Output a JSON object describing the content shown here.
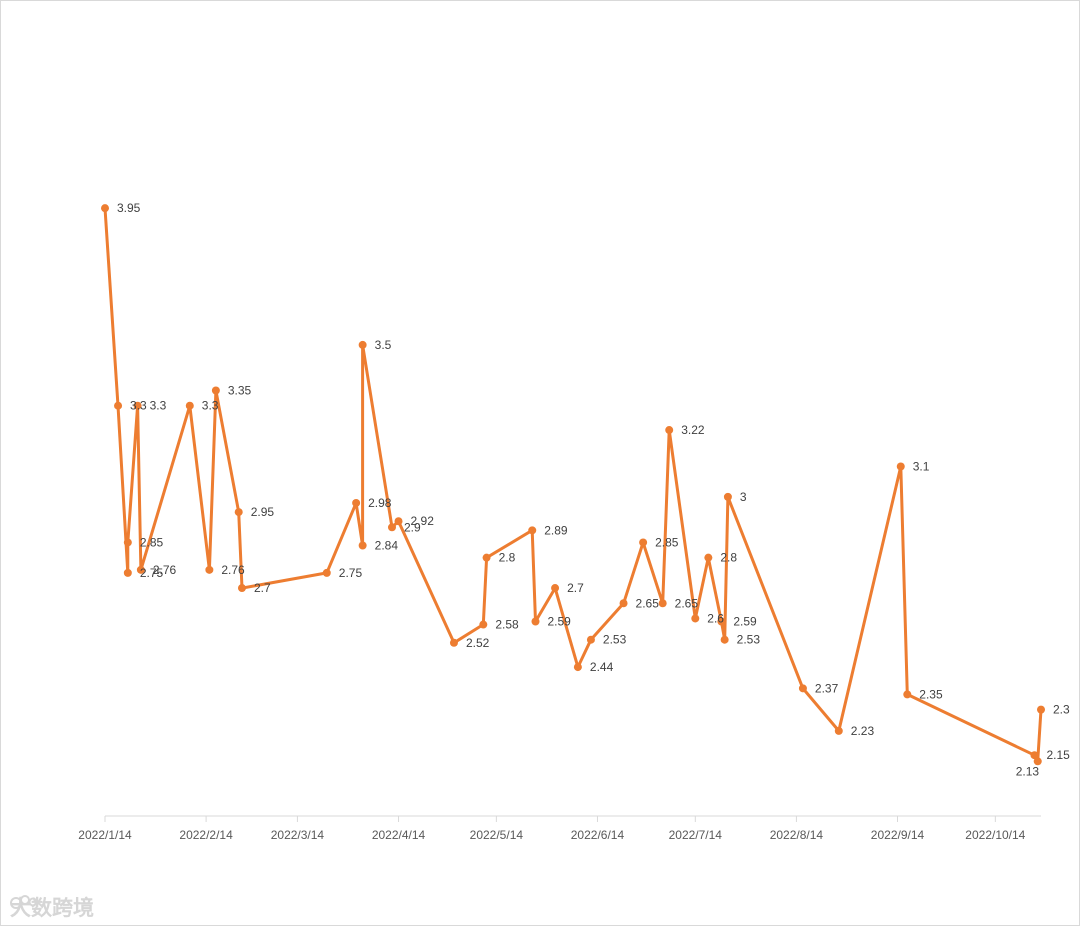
{
  "chart_data": {
    "type": "line",
    "x_axis": {
      "type": "date",
      "range": [
        "2022-01-14",
        "2022-10-28"
      ],
      "ticks": [
        {
          "date": "2022-01-14",
          "label": "2022/1/14"
        },
        {
          "date": "2022-02-14",
          "label": "2022/2/14"
        },
        {
          "date": "2022-03-14",
          "label": "2022/3/14"
        },
        {
          "date": "2022-04-14",
          "label": "2022/4/14"
        },
        {
          "date": "2022-05-14",
          "label": "2022/5/14"
        },
        {
          "date": "2022-06-14",
          "label": "2022/6/14"
        },
        {
          "date": "2022-07-14",
          "label": "2022/7/14"
        },
        {
          "date": "2022-08-14",
          "label": "2022/8/14"
        },
        {
          "date": "2022-09-14",
          "label": "2022/9/14"
        },
        {
          "date": "2022-10-14",
          "label": "2022/10/14"
        }
      ]
    },
    "y_axis": {
      "visible": false,
      "ylim": [
        1.95,
        4.5
      ]
    },
    "grid": false,
    "legend": "none",
    "series": [
      {
        "color": "#ED7D31",
        "points": [
          {
            "x": "2022-01-14",
            "y": 3.95,
            "label": "3.95"
          },
          {
            "x": "2022-01-18",
            "y": 3.3,
            "label": "3.3"
          },
          {
            "x": "2022-01-21",
            "y": 2.75,
            "label": "2.75"
          },
          {
            "x": "2022-01-21",
            "y": 2.85,
            "label": "2.85"
          },
          {
            "x": "2022-01-24",
            "y": 3.3,
            "label": "3.3"
          },
          {
            "x": "2022-01-25",
            "y": 2.76,
            "label": "2.76"
          },
          {
            "x": "2022-02-09",
            "y": 3.3,
            "label": "3.3"
          },
          {
            "x": "2022-02-15",
            "y": 2.76,
            "label": "2.76"
          },
          {
            "x": "2022-02-17",
            "y": 3.35,
            "label": "3.35"
          },
          {
            "x": "2022-02-24",
            "y": 2.95,
            "label": "2.95"
          },
          {
            "x": "2022-02-25",
            "y": 2.7,
            "label": "2.7"
          },
          {
            "x": "2022-03-23",
            "y": 2.75,
            "label": "2.75"
          },
          {
            "x": "2022-04-01",
            "y": 2.98,
            "label": "2.98"
          },
          {
            "x": "2022-04-03",
            "y": 2.84,
            "label": "2.84"
          },
          {
            "x": "2022-04-03",
            "y": 3.5,
            "label": "3.5"
          },
          {
            "x": "2022-04-12",
            "y": 2.9,
            "label": "2.9"
          },
          {
            "x": "2022-04-14",
            "y": 2.92,
            "label": "2.92"
          },
          {
            "x": "2022-05-01",
            "y": 2.52,
            "label": "2.52"
          },
          {
            "x": "2022-05-10",
            "y": 2.58,
            "label": "2.58"
          },
          {
            "x": "2022-05-11",
            "y": 2.8,
            "label": "2.8"
          },
          {
            "x": "2022-05-25",
            "y": 2.89,
            "label": "2.89"
          },
          {
            "x": "2022-05-26",
            "y": 2.59,
            "label": "2.59"
          },
          {
            "x": "2022-06-01",
            "y": 2.7,
            "label": "2.7"
          },
          {
            "x": "2022-06-08",
            "y": 2.44,
            "label": "2.44"
          },
          {
            "x": "2022-06-12",
            "y": 2.53,
            "label": "2.53"
          },
          {
            "x": "2022-06-22",
            "y": 2.65,
            "label": "2.65"
          },
          {
            "x": "2022-06-28",
            "y": 2.85,
            "label": "2.85"
          },
          {
            "x": "2022-07-04",
            "y": 2.65,
            "label": "2.65"
          },
          {
            "x": "2022-07-06",
            "y": 3.22,
            "label": "3.22"
          },
          {
            "x": "2022-07-14",
            "y": 2.6,
            "label": "2.6"
          },
          {
            "x": "2022-07-18",
            "y": 2.8,
            "label": "2.8"
          },
          {
            "x": "2022-07-22",
            "y": 2.59,
            "label": "2.59"
          },
          {
            "x": "2022-07-23",
            "y": 2.53,
            "label": "2.53"
          },
          {
            "x": "2022-07-24",
            "y": 3.0,
            "label": "3"
          },
          {
            "x": "2022-08-16",
            "y": 2.37,
            "label": "2.37"
          },
          {
            "x": "2022-08-27",
            "y": 2.23,
            "label": "2.23"
          },
          {
            "x": "2022-09-15",
            "y": 3.1,
            "label": "3.1"
          },
          {
            "x": "2022-09-17",
            "y": 2.35,
            "label": "2.35"
          },
          {
            "x": "2022-10-26",
            "y": 2.15,
            "label": "2.15"
          },
          {
            "x": "2022-10-27",
            "y": 2.13,
            "label": "2.13"
          },
          {
            "x": "2022-10-28",
            "y": 2.3,
            "label": "2.3"
          }
        ]
      }
    ]
  },
  "watermark": {
    "text": "大数跨境",
    "icon": "brand-logo-icon"
  }
}
